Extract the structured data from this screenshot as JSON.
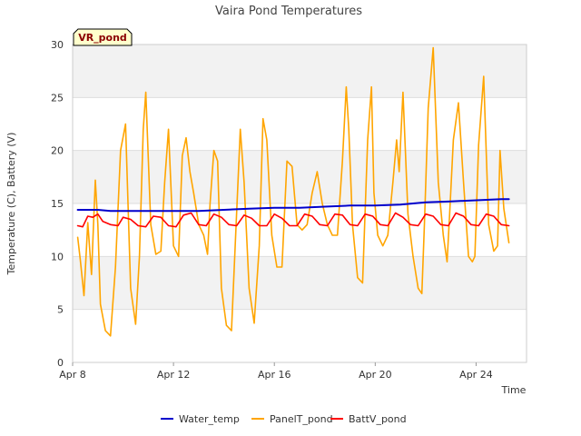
{
  "chart_data": {
    "type": "line",
    "title": "Vaira Pond Temperatures",
    "xlabel": "Time",
    "ylabel": "Temperature (C), Battery (V)",
    "site_badge": "VR_pond",
    "x_domain": [
      "Apr 8",
      "Apr 26"
    ],
    "ylim": [
      0,
      30
    ],
    "y_ticks": [
      0,
      5,
      10,
      15,
      20,
      25,
      30
    ],
    "x_ticks": [
      {
        "day": 8,
        "label": "Apr 8"
      },
      {
        "day": 12,
        "label": "Apr 12"
      },
      {
        "day": 16,
        "label": "Apr 16"
      },
      {
        "day": 20,
        "label": "Apr 20"
      },
      {
        "day": 24,
        "label": "Apr 24"
      }
    ],
    "grid": true,
    "legend_position": "bottom",
    "series": [
      {
        "name": "Water_temp",
        "color": "#0000cc",
        "x": [
          8.2,
          9.0,
          9.5,
          10.0,
          11.0,
          12.0,
          13.0,
          14.0,
          15.0,
          16.0,
          17.0,
          18.0,
          19.0,
          20.0,
          21.0,
          22.0,
          23.0,
          24.0,
          25.0,
          25.3
        ],
        "y": [
          14.4,
          14.4,
          14.3,
          14.3,
          14.3,
          14.3,
          14.3,
          14.4,
          14.5,
          14.6,
          14.6,
          14.7,
          14.8,
          14.8,
          14.9,
          15.1,
          15.2,
          15.3,
          15.4,
          15.4
        ]
      },
      {
        "name": "PanelT_pond",
        "color": "#ffa500",
        "x": [
          8.2,
          8.3,
          8.45,
          8.6,
          8.75,
          8.9,
          9.0,
          9.1,
          9.3,
          9.5,
          9.7,
          9.9,
          10.1,
          10.3,
          10.5,
          10.65,
          10.8,
          10.9,
          11.1,
          11.3,
          11.5,
          11.65,
          11.8,
          12.0,
          12.2,
          12.35,
          12.5,
          12.65,
          12.8,
          13.0,
          13.2,
          13.35,
          13.45,
          13.6,
          13.75,
          13.9,
          14.1,
          14.3,
          14.5,
          14.65,
          14.8,
          15.0,
          15.2,
          15.4,
          15.55,
          15.7,
          15.9,
          16.1,
          16.3,
          16.5,
          16.7,
          16.9,
          17.1,
          17.3,
          17.5,
          17.7,
          17.9,
          18.1,
          18.3,
          18.5,
          18.7,
          18.85,
          18.95,
          19.1,
          19.3,
          19.5,
          19.7,
          19.85,
          19.95,
          20.1,
          20.3,
          20.5,
          20.7,
          20.85,
          20.95,
          21.1,
          21.3,
          21.5,
          21.7,
          21.85,
          21.95,
          22.1,
          22.3,
          22.5,
          22.7,
          22.85,
          22.95,
          23.1,
          23.3,
          23.5,
          23.7,
          23.85,
          23.95,
          24.1,
          24.3,
          24.5,
          24.7,
          24.85,
          24.95,
          25.1,
          25.3
        ],
        "y": [
          11.8,
          9.8,
          6.3,
          13.2,
          8.3,
          17.2,
          13.0,
          5.5,
          3.0,
          2.5,
          9.0,
          20.0,
          22.5,
          7.0,
          3.6,
          10.0,
          22.0,
          25.5,
          13.0,
          10.2,
          10.5,
          17.0,
          22.0,
          11.0,
          10.0,
          19.5,
          21.2,
          18.0,
          16.0,
          13.0,
          12.0,
          10.2,
          15.0,
          20.0,
          19.0,
          7.0,
          3.5,
          3.0,
          14.0,
          22.0,
          17.0,
          7.0,
          3.7,
          11.0,
          23.0,
          21.0,
          12.0,
          9.0,
          9.0,
          19.0,
          18.5,
          13.0,
          12.5,
          13.0,
          16.0,
          18.0,
          15.0,
          13.0,
          12.0,
          12.0,
          19.0,
          26.0,
          22.0,
          13.0,
          8.0,
          7.5,
          21.0,
          26.0,
          16.0,
          12.0,
          11.0,
          12.0,
          17.0,
          21.0,
          18.0,
          25.5,
          14.0,
          10.0,
          7.0,
          6.5,
          13.0,
          24.0,
          29.7,
          17.0,
          12.0,
          9.5,
          14.0,
          21.0,
          24.5,
          17.0,
          10.0,
          9.5,
          10.0,
          20.5,
          27.0,
          13.0,
          10.5,
          11.0,
          20.0,
          14.5,
          11.3
        ]
      },
      {
        "name": "BattV_pond",
        "color": "#ff0000",
        "x": [
          8.2,
          8.4,
          8.6,
          8.8,
          9.0,
          9.2,
          9.5,
          9.8,
          10.0,
          10.3,
          10.6,
          10.9,
          11.2,
          11.5,
          11.8,
          12.1,
          12.4,
          12.7,
          13.0,
          13.3,
          13.6,
          13.9,
          14.2,
          14.5,
          14.8,
          15.1,
          15.4,
          15.7,
          16.0,
          16.3,
          16.6,
          16.9,
          17.2,
          17.5,
          17.8,
          18.1,
          18.4,
          18.7,
          19.0,
          19.3,
          19.6,
          19.9,
          20.2,
          20.5,
          20.8,
          21.1,
          21.4,
          21.7,
          22.0,
          22.3,
          22.6,
          22.9,
          23.2,
          23.5,
          23.8,
          24.1,
          24.4,
          24.7,
          25.0,
          25.3
        ],
        "y": [
          12.9,
          12.8,
          13.8,
          13.7,
          14.0,
          13.3,
          13.0,
          12.9,
          13.7,
          13.5,
          12.9,
          12.8,
          13.8,
          13.7,
          12.9,
          12.8,
          13.9,
          14.1,
          13.0,
          12.9,
          14.0,
          13.7,
          13.0,
          12.9,
          13.9,
          13.6,
          12.9,
          12.9,
          14.0,
          13.6,
          12.9,
          12.9,
          14.0,
          13.8,
          13.0,
          12.9,
          14.0,
          13.9,
          13.0,
          12.9,
          14.0,
          13.8,
          13.0,
          12.9,
          14.1,
          13.7,
          13.0,
          12.9,
          14.0,
          13.8,
          13.0,
          12.9,
          14.1,
          13.8,
          13.0,
          12.9,
          14.0,
          13.8,
          13.0,
          12.9
        ]
      }
    ]
  }
}
